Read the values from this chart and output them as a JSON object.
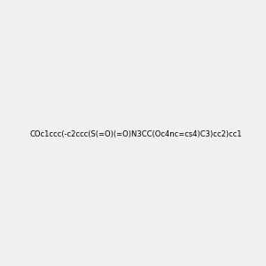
{
  "smiles": "COc1ccc(-c2ccc(S(=O)(=O)N3CC(Oc4nc=cs4)C3)cc2)cc1",
  "image_size": 300,
  "background_color": "#f0f0f0",
  "bond_color": "#000000",
  "atom_colors": {
    "N": "#0000ff",
    "O": "#ff0000",
    "S": "#cccc00"
  }
}
